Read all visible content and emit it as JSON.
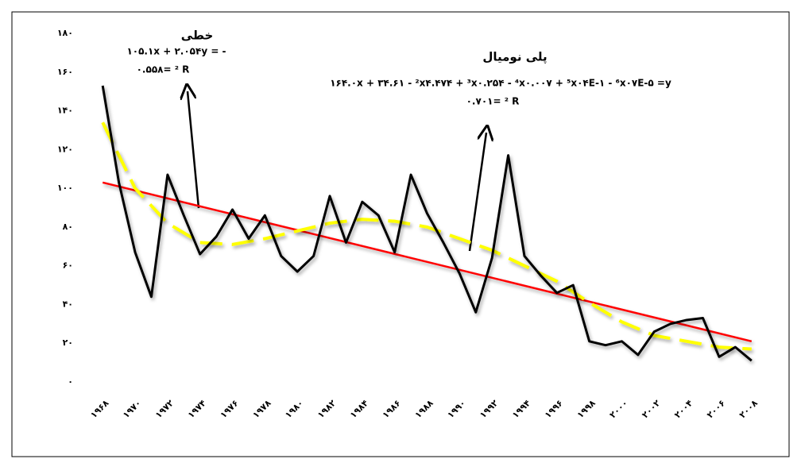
{
  "chart_data": {
    "type": "line",
    "x": [
      1968,
      1969,
      1970,
      1971,
      1972,
      1973,
      1974,
      1975,
      1976,
      1977,
      1978,
      1979,
      1980,
      1981,
      1982,
      1983,
      1984,
      1985,
      1986,
      1987,
      1988,
      1989,
      1990,
      1991,
      1992,
      1993,
      1994,
      1995,
      1996,
      1997,
      1998,
      1999,
      2000,
      2001,
      2002,
      2003,
      2004,
      2005,
      2006,
      2007,
      2008
    ],
    "series": [
      {
        "color": "#000000",
        "values": [
          153,
          103,
          67,
          44,
          107,
          86,
          66,
          75,
          89,
          74,
          86,
          65,
          57,
          65,
          96,
          72,
          93,
          86,
          67,
          107,
          87,
          72,
          56,
          36,
          64,
          117,
          65,
          55,
          46,
          50,
          21,
          19,
          21,
          14,
          26,
          30,
          32,
          33,
          13,
          18,
          11
        ]
      }
    ],
    "trendlines": [
      {
        "color": "#ff0000",
        "dashed": false,
        "x": [
          1968,
          2008
        ],
        "values": [
          103,
          21
        ]
      },
      {
        "color": "#ffff00",
        "dashed": true,
        "x": [
          1968,
          1970,
          1972,
          1974,
          1976,
          1978,
          1980,
          1982,
          1984,
          1986,
          1988,
          1990,
          1992,
          1994,
          1996,
          1998,
          2000,
          2002,
          2004,
          2006,
          2008
        ],
        "values": [
          134,
          100,
          82,
          72,
          71,
          74,
          78,
          82,
          84,
          83,
          80,
          74,
          68,
          60,
          52,
          41,
          31,
          24,
          21,
          18,
          17
        ]
      }
    ],
    "xlim": [
      1967.5,
      2008.5
    ],
    "ylim": [
      0,
      180
    ],
    "yticks": [
      {
        "value": 0,
        "label": "۰"
      },
      {
        "value": 20,
        "label": "۲۰"
      },
      {
        "value": 40,
        "label": "۴۰"
      },
      {
        "value": 60,
        "label": "۶۰"
      },
      {
        "value": 80,
        "label": "۸۰"
      },
      {
        "value": 100,
        "label": "۱۰۰"
      },
      {
        "value": 120,
        "label": "۱۲۰"
      },
      {
        "value": 140,
        "label": "۱۴۰"
      },
      {
        "value": 160,
        "label": "۱۶۰"
      },
      {
        "value": 180,
        "label": "۱۸۰"
      }
    ],
    "xticks": [
      {
        "value": 1968,
        "label": "۱۹۶۸"
      },
      {
        "value": 1970,
        "label": "۱۹۷۰"
      },
      {
        "value": 1972,
        "label": "۱۹۷۲"
      },
      {
        "value": 1974,
        "label": "۱۹۷۴"
      },
      {
        "value": 1976,
        "label": "۱۹۷۶"
      },
      {
        "value": 1978,
        "label": "۱۹۷۸"
      },
      {
        "value": 1980,
        "label": "۱۹۸۰"
      },
      {
        "value": 1982,
        "label": "۱۹۸۲"
      },
      {
        "value": 1984,
        "label": "۱۹۸۴"
      },
      {
        "value": 1986,
        "label": "۱۹۸۶"
      },
      {
        "value": 1988,
        "label": "۱۹۸۸"
      },
      {
        "value": 1990,
        "label": "۱۹۹۰"
      },
      {
        "value": 1992,
        "label": "۱۹۹۲"
      },
      {
        "value": 1994,
        "label": "۱۹۹۴"
      },
      {
        "value": 1996,
        "label": "۱۹۹۶"
      },
      {
        "value": 1998,
        "label": "۱۹۹۸"
      },
      {
        "value": 2000,
        "label": "۲۰۰۰"
      },
      {
        "value": 2002,
        "label": "۲۰۰۲"
      },
      {
        "value": 2004,
        "label": "۲۰۰۴"
      },
      {
        "value": 2006,
        "label": "۲۰۰۶"
      },
      {
        "value": 2008,
        "label": "۲۰۰۸"
      }
    ],
    "annotations": {
      "linear_title": "خطی",
      "linear_equation": "۱۰۵.۱x + ۲.۰۵۴y = -",
      "linear_r2": "۰.۵۵۸= ² R",
      "poly_title": "پلی نومیال",
      "poly_equation": "۱۶۴.۰x + ۳۴.۶۱ - ²x۴.۴۷۴ + ³x۰.۲۵۴ - ⁴x۰.۰۰۷ + ⁵x۰۴E-۱ - ⁶x۰۷E-۵ =y",
      "poly_r2": "۰.۷۰۱= ² R"
    }
  }
}
